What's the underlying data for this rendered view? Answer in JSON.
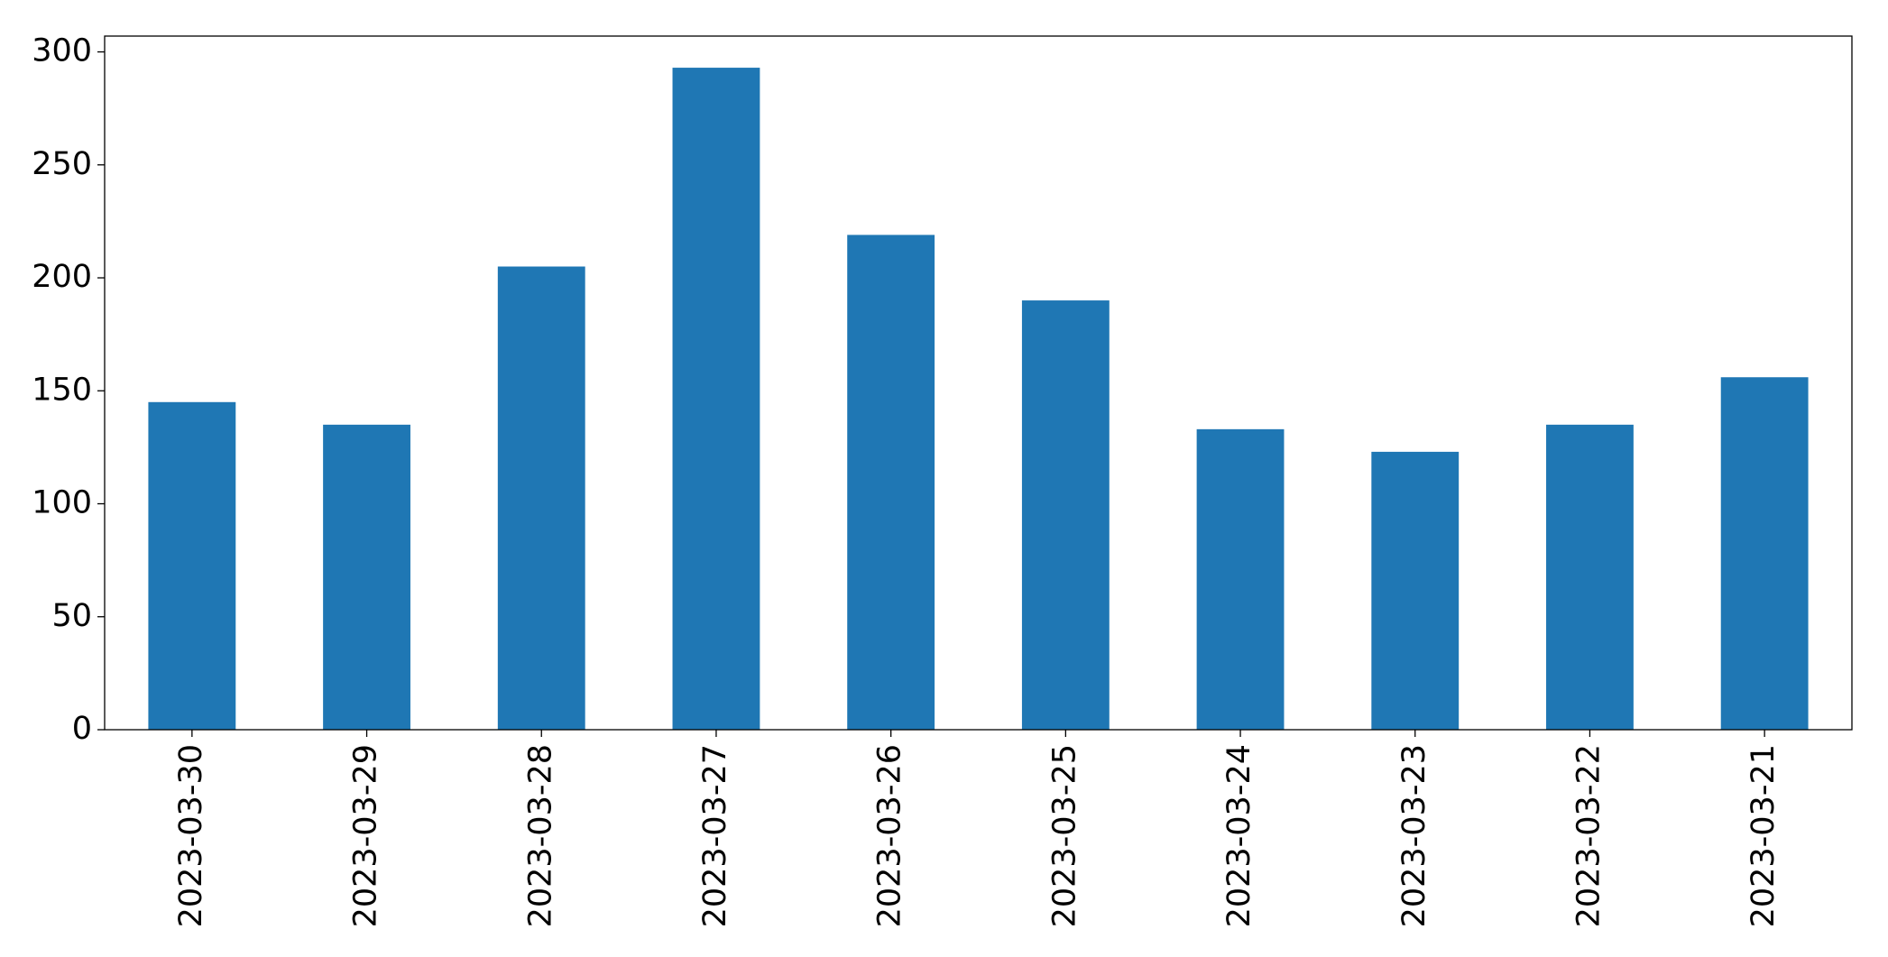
{
  "chart_data": {
    "type": "bar",
    "categories": [
      "2023-03-30",
      "2023-03-29",
      "2023-03-28",
      "2023-03-27",
      "2023-03-26",
      "2023-03-25",
      "2023-03-24",
      "2023-03-23",
      "2023-03-22",
      "2023-03-21"
    ],
    "values": [
      145,
      135,
      205,
      293,
      219,
      190,
      133,
      123,
      135,
      156
    ],
    "color": "#1f77b4",
    "ylim": [
      0,
      307
    ],
    "yticks": [
      0,
      50,
      100,
      150,
      200,
      250,
      300
    ],
    "grid": false
  }
}
